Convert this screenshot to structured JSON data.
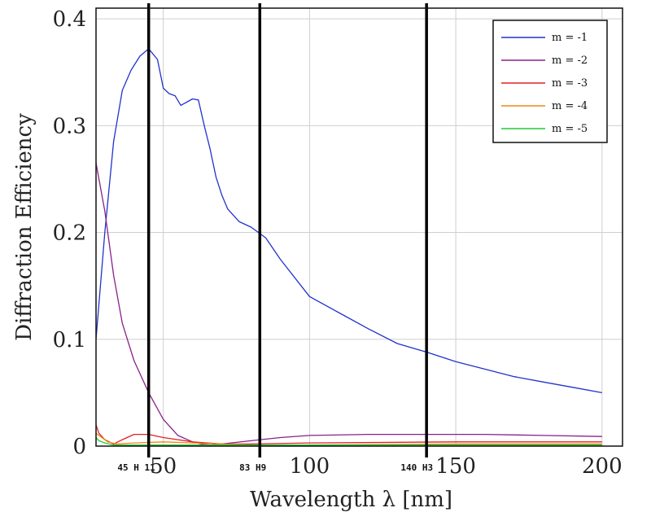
{
  "chart_data": {
    "type": "line",
    "xlabel": "Wavelength λ [nm]",
    "ylabel": "Diffraction Efficiency",
    "xlim": [
      27,
      207
    ],
    "ylim": [
      0,
      0.41
    ],
    "x_ticks": [
      50,
      100,
      150,
      200
    ],
    "y_ticks": [
      0,
      0.1,
      0.2,
      0.3,
      0.4
    ],
    "y_tick_labels": [
      "0",
      "0.1",
      "0.2",
      "0.3",
      "0.4"
    ],
    "grid": true,
    "legend_position": "top-right",
    "series": [
      {
        "name": "m = -1",
        "color": "#2233cc",
        "x": [
          27,
          30,
          33,
          36,
          39,
          42,
          45,
          48,
          50,
          52,
          54,
          56,
          58,
          60,
          62,
          64,
          66,
          68,
          70,
          72,
          74,
          76,
          80,
          85,
          90,
          100,
          110,
          120,
          130,
          140,
          150,
          160,
          170,
          180,
          190,
          200
        ],
        "y": [
          0.1,
          0.2,
          0.285,
          0.333,
          0.352,
          0.365,
          0.372,
          0.362,
          0.335,
          0.33,
          0.328,
          0.319,
          0.322,
          0.325,
          0.324,
          0.3,
          0.278,
          0.252,
          0.235,
          0.222,
          0.216,
          0.21,
          0.205,
          0.195,
          0.175,
          0.14,
          0.125,
          0.11,
          0.096,
          0.088,
          0.079,
          0.072,
          0.065,
          0.06,
          0.055,
          0.05
        ]
      },
      {
        "name": "m = -2",
        "color": "#882288",
        "x": [
          27,
          30,
          33,
          36,
          40,
          45,
          50,
          55,
          60,
          63,
          66,
          70,
          80,
          90,
          100,
          120,
          140,
          160,
          180,
          200
        ],
        "y": [
          0.265,
          0.22,
          0.16,
          0.115,
          0.08,
          0.05,
          0.025,
          0.01,
          0.004,
          0.002,
          0.001,
          0.002,
          0.005,
          0.008,
          0.01,
          0.011,
          0.011,
          0.011,
          0.01,
          0.009
        ]
      },
      {
        "name": "m = -3",
        "color": "#dd2222",
        "x": [
          27,
          28,
          30,
          33,
          36,
          40,
          45,
          50,
          55,
          60,
          70,
          80,
          100,
          150,
          200
        ],
        "y": [
          0.02,
          0.012,
          0.006,
          0.002,
          0.006,
          0.011,
          0.011,
          0.008,
          0.006,
          0.004,
          0.002,
          0.002,
          0.003,
          0.004,
          0.004
        ]
      },
      {
        "name": "m = -4",
        "color": "#ee8811",
        "x": [
          27,
          29,
          31,
          34,
          40,
          50,
          60,
          80,
          100,
          150,
          200
        ],
        "y": [
          0.012,
          0.008,
          0.004,
          0.002,
          0.003,
          0.004,
          0.003,
          0.001,
          0.001,
          0.002,
          0.002
        ]
      },
      {
        "name": "m = -5",
        "color": "#22cc33",
        "x": [
          27,
          28,
          30,
          33,
          40,
          50,
          60,
          80,
          100,
          150,
          200
        ],
        "y": [
          0.008,
          0.005,
          0.003,
          0.001,
          0.001,
          0.001,
          0.001,
          0.001,
          0.001,
          0.001,
          0.001
        ]
      }
    ],
    "vertical_markers": [
      {
        "x": 45,
        "label": "45 H 11"
      },
      {
        "x": 83,
        "label": "83 H9"
      },
      {
        "x": 140,
        "label": "140 H3"
      }
    ]
  }
}
